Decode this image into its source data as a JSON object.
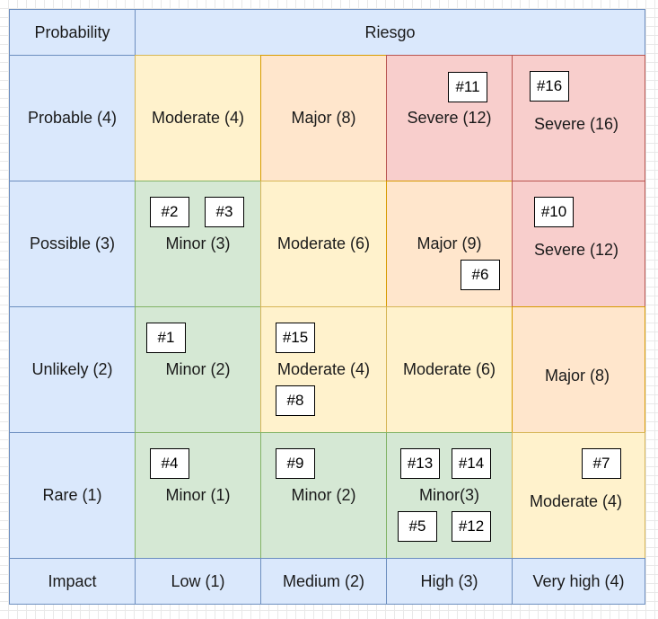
{
  "header": {
    "probability_label": "Probability",
    "title": "Riesgo",
    "impact_label": "Impact"
  },
  "rows": [
    {
      "label": "Probable (4)"
    },
    {
      "label": "Possible (3)"
    },
    {
      "label": "Unlikely (2)"
    },
    {
      "label": "Rare (1)"
    }
  ],
  "columns": [
    {
      "label": "Low (1)"
    },
    {
      "label": "Medium (2)"
    },
    {
      "label": "High (3)"
    },
    {
      "label": "Very high (4)"
    }
  ],
  "cells": {
    "r4c1": {
      "text": "Moderate (4)",
      "color": "#fff2cc"
    },
    "r4c2": {
      "text": "Major (8)",
      "color": "#ffe6cc"
    },
    "r4c3": {
      "text": "Severe (12)",
      "color": "#f8cecc",
      "tags": [
        "#11"
      ]
    },
    "r4c4": {
      "text": "Severe (16)",
      "color": "#f8cecc",
      "tags": [
        "#16"
      ]
    },
    "r3c1": {
      "text": "Minor (3)",
      "color": "#d5e8d4",
      "tags": [
        "#2",
        "#3"
      ]
    },
    "r3c2": {
      "text": "Moderate (6)",
      "color": "#fff2cc"
    },
    "r3c3": {
      "text": "Major (9)",
      "color": "#ffe6cc",
      "tags": [
        "#6"
      ]
    },
    "r3c4": {
      "text": "Severe (12)",
      "color": "#f8cecc",
      "tags": [
        "#10"
      ]
    },
    "r2c1": {
      "text": "Minor (2)",
      "color": "#d5e8d4",
      "tags": [
        "#1"
      ]
    },
    "r2c2": {
      "text": "Moderate (4)",
      "color": "#fff2cc",
      "tags": [
        "#15",
        "#8"
      ]
    },
    "r2c3": {
      "text": "Moderate (6)",
      "color": "#fff2cc"
    },
    "r2c4": {
      "text": "Major (8)",
      "color": "#ffe6cc"
    },
    "r1c1": {
      "text": "Minor (1)",
      "color": "#d5e8d4",
      "tags": [
        "#4"
      ]
    },
    "r1c2": {
      "text": "Minor (2)",
      "color": "#d5e8d4",
      "tags": [
        "#9"
      ]
    },
    "r1c3": {
      "text": "Minor(3)",
      "color": "#d5e8d4",
      "tags": [
        "#13",
        "#14",
        "#5",
        "#12"
      ]
    },
    "r1c4": {
      "text": "Moderate (4)",
      "color": "#fff2cc",
      "tags": [
        "#7"
      ]
    }
  }
}
